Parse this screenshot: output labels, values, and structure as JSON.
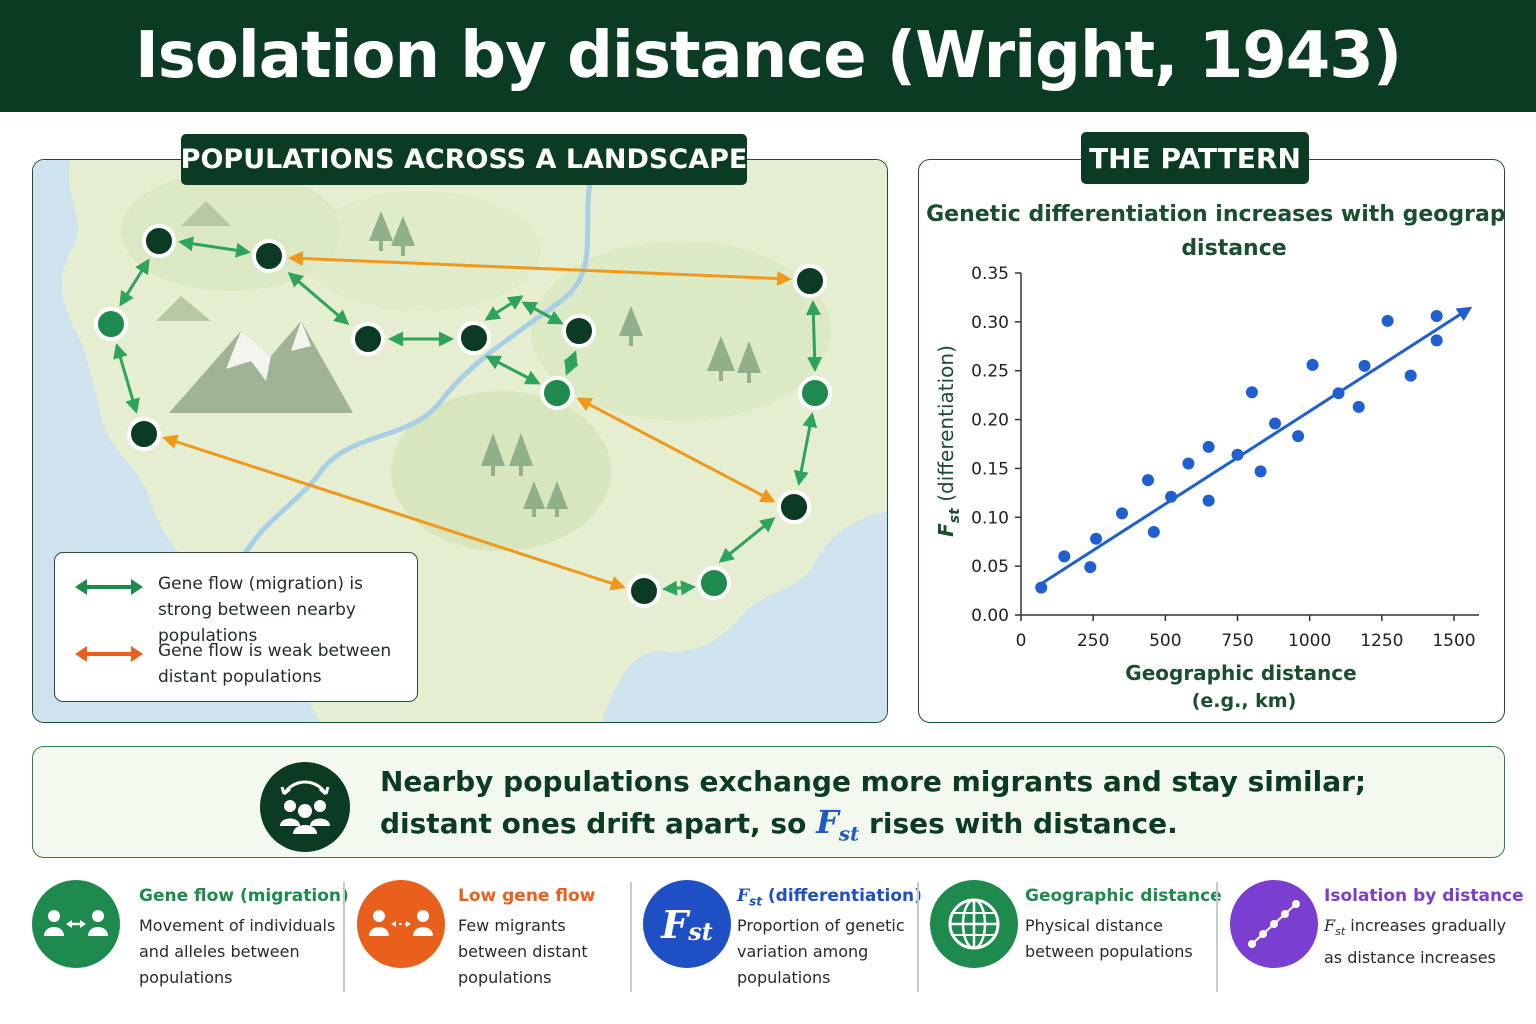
{
  "title": "Isolation by distance (Wright, 1943)",
  "map_panel": {
    "tag": "POPULATIONS ACROSS A LANDSCAPE",
    "legend": {
      "strong_label": "Gene flow (migration) is strong between nearby populations",
      "weak_label": "Gene flow is weak between distant populations"
    }
  },
  "chart_panel": {
    "tag": "THE PATTERN"
  },
  "chart_data": {
    "type": "scatter",
    "title": "Genetic differentiation increases with geographic distance",
    "xlabel": "Geographic distance (e.g., km)",
    "ylabel": "Fst (differentiation)",
    "xlim": [
      0,
      1500
    ],
    "ylim": [
      0,
      0.35
    ],
    "xticks": [
      0,
      250,
      500,
      750,
      1000,
      1250,
      1500
    ],
    "yticks": [
      "0.00",
      "0.05",
      "0.10",
      "0.15",
      "0.20",
      "0.25",
      "0.30",
      "0.35"
    ],
    "points": [
      [
        70,
        0.028
      ],
      [
        150,
        0.06
      ],
      [
        240,
        0.049
      ],
      [
        260,
        0.078
      ],
      [
        350,
        0.104
      ],
      [
        440,
        0.138
      ],
      [
        460,
        0.085
      ],
      [
        520,
        0.121
      ],
      [
        580,
        0.155
      ],
      [
        650,
        0.172
      ],
      [
        650,
        0.117
      ],
      [
        750,
        0.164
      ],
      [
        800,
        0.228
      ],
      [
        830,
        0.147
      ],
      [
        880,
        0.196
      ],
      [
        960,
        0.183
      ],
      [
        1010,
        0.256
      ],
      [
        1100,
        0.227
      ],
      [
        1170,
        0.213
      ],
      [
        1190,
        0.255
      ],
      [
        1270,
        0.301
      ],
      [
        1350,
        0.245
      ],
      [
        1440,
        0.281
      ],
      [
        1440,
        0.306
      ]
    ],
    "trend": {
      "x": [
        70,
        1550
      ],
      "y": [
        0.032,
        0.313
      ]
    },
    "grid": false,
    "colors": {
      "points": "#1f5fd1",
      "trend": "#1f5fd1"
    }
  },
  "summary": {
    "line1": "Nearby populations exchange more migrants and stay similar;",
    "line2_before": "distant ones drift apart, so",
    "fst_main": "F",
    "fst_sub": "st",
    "line2_after": "rises with distance."
  },
  "bottom": [
    {
      "title": "Gene flow (migration)",
      "desc": "Movement of individuals and alleles between populations",
      "color": "#1e8a4e",
      "icon": "people-arrow-icon"
    },
    {
      "title": "Low gene flow",
      "desc": "Few migrants between distant populations",
      "color": "#e8601c",
      "icon": "people-dashed-arrow-icon"
    },
    {
      "title_main": "F",
      "title_sub": "st",
      "title_rest": " (differentiation)",
      "icon_main": "F",
      "icon_sub": "st",
      "desc": "Proportion of genetic variation among populations",
      "color": "#1f4fc4",
      "icon": "fst-icon"
    },
    {
      "title": "Geographic distance",
      "desc": "Physical distance between populations",
      "color": "#1e8a4e",
      "icon": "globe-icon"
    },
    {
      "title": "Isolation by distance",
      "desc_main": "F",
      "desc_sub": "st",
      "desc_rest": " increases gradually as distance increases",
      "color": "#7a3fd0",
      "icon": "trend-dots-icon"
    }
  ]
}
